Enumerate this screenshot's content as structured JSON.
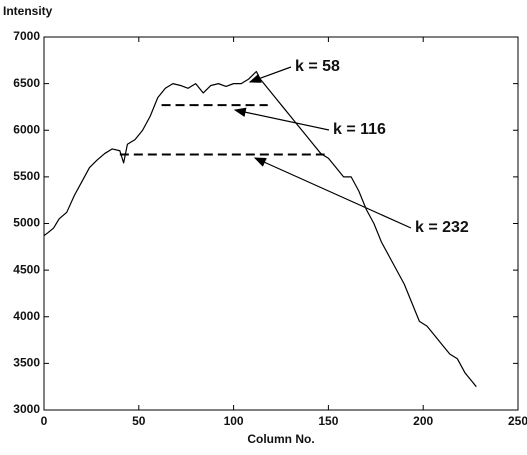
{
  "chart_data": {
    "type": "line",
    "y_label": "Intensity",
    "x_label": "Column No.",
    "x": [
      0,
      2,
      5,
      8,
      12,
      16,
      20,
      24,
      28,
      32,
      36,
      40,
      42,
      44,
      48,
      52,
      56,
      60,
      64,
      68,
      72,
      76,
      80,
      84,
      88,
      92,
      96,
      100,
      104,
      108,
      112,
      114,
      118,
      122,
      126,
      130,
      134,
      138,
      142,
      146,
      150,
      154,
      158,
      162,
      166,
      170,
      174,
      178,
      182,
      186,
      190,
      194,
      198,
      202,
      206,
      210,
      214,
      218,
      222,
      226,
      228
    ],
    "values": [
      4870,
      4900,
      4950,
      5050,
      5120,
      5300,
      5450,
      5600,
      5680,
      5750,
      5800,
      5780,
      5650,
      5850,
      5900,
      6000,
      6150,
      6350,
      6450,
      6500,
      6480,
      6450,
      6500,
      6400,
      6480,
      6500,
      6470,
      6500,
      6500,
      6550,
      6630,
      6550,
      6450,
      6350,
      6250,
      6150,
      6050,
      5950,
      5850,
      5750,
      5700,
      5600,
      5500,
      5500,
      5350,
      5150,
      5000,
      4800,
      4650,
      4500,
      4350,
      4150,
      3950,
      3900,
      3800,
      3700,
      3600,
      3550,
      3400,
      3300,
      3250
    ],
    "color": "#000000",
    "reference_lines": [
      {
        "x": [
          62,
          118
        ],
        "values": [
          6270,
          6270
        ]
      },
      {
        "x": [
          40,
          148
        ],
        "values": [
          5740,
          5740
        ]
      }
    ],
    "annotations": [
      "k = 58",
      "k = 116",
      "k = 232"
    ],
    "xlim": [
      0,
      250
    ],
    "xticks": [
      0,
      50,
      100,
      150,
      200,
      250
    ],
    "ylim": [
      3000,
      7000
    ],
    "yticks": [
      3000,
      3500,
      4000,
      4500,
      5000,
      5500,
      6000,
      6500,
      7000
    ],
    "grid": false
  }
}
